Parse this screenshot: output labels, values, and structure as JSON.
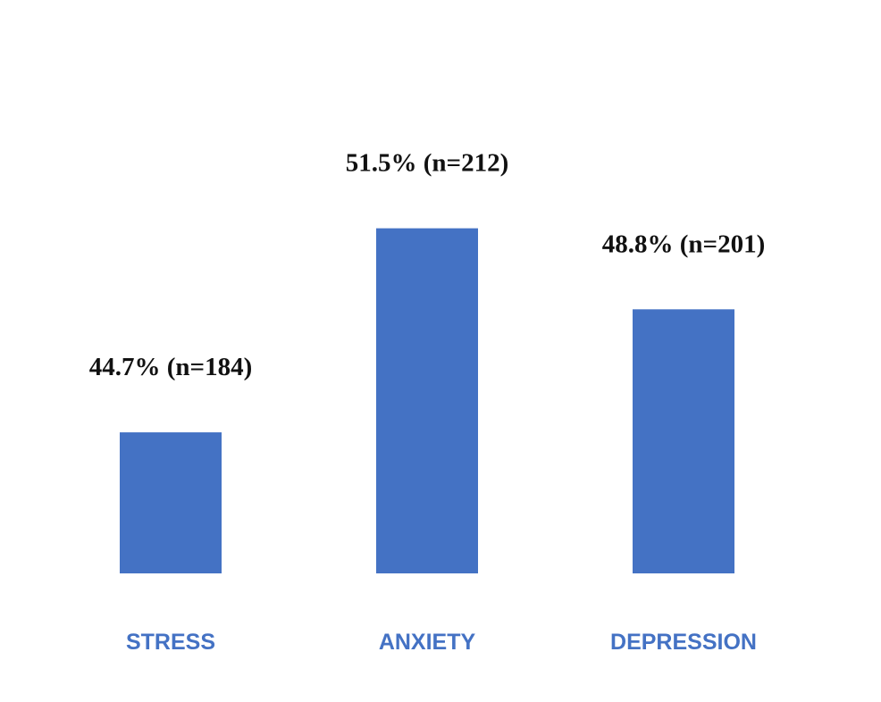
{
  "chart_data": {
    "type": "bar",
    "categories": [
      "STRESS",
      "ANXIETY",
      "DEPRESSION"
    ],
    "values": [
      44.7,
      51.5,
      48.8
    ],
    "counts": [
      184,
      212,
      201
    ],
    "data_labels": [
      "44.7% (n=184)",
      "51.5% (n=212)",
      "48.8% (n=201)"
    ],
    "title": "",
    "xlabel": "",
    "ylabel": "",
    "ylim": [
      40,
      55
    ],
    "grid": false,
    "legend": "none",
    "bar_color": "#4472C4",
    "category_label_color": "#4472C4"
  }
}
